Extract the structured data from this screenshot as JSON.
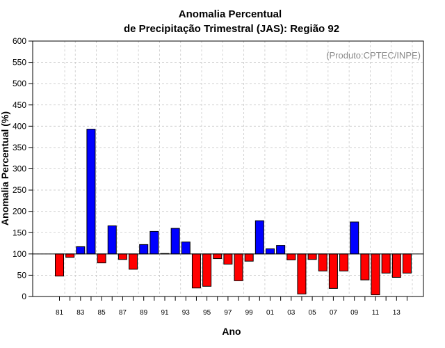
{
  "chart_data": {
    "type": "bar",
    "title_line1": "Anomalia Percentual",
    "title_line2": "de Precipitação Trimestral (JAS): Região 92",
    "xlabel": "Ano",
    "ylabel": "Anomalia Percentual (%)",
    "annotation": "(Produto:CPTEC/INPE)",
    "ylim": [
      0,
      600
    ],
    "yticks": [
      "0",
      "50",
      "100",
      "150",
      "200",
      "250",
      "300",
      "350",
      "400",
      "450",
      "500",
      "550",
      "600"
    ],
    "baseline": 100,
    "colors": {
      "above": "#0000ff",
      "below": "#ff0000"
    },
    "categories": [
      "81",
      "82",
      "83",
      "84",
      "85",
      "86",
      "87",
      "88",
      "89",
      "90",
      "91",
      "92",
      "93",
      "94",
      "95",
      "96",
      "97",
      "98",
      "99",
      "00",
      "01",
      "02",
      "03",
      "04",
      "05",
      "06",
      "07",
      "08",
      "09",
      "10",
      "11",
      "12",
      "13",
      "14"
    ],
    "xtick_labels": [
      "81",
      "83",
      "85",
      "87",
      "89",
      "91",
      "93",
      "95",
      "97",
      "99",
      "01",
      "03",
      "05",
      "07",
      "09",
      "11",
      "13"
    ],
    "values": [
      48,
      92,
      117,
      393,
      79,
      166,
      87,
      64,
      122,
      153,
      101,
      160,
      128,
      20,
      24,
      89,
      76,
      37,
      83,
      178,
      112,
      120,
      86,
      6,
      87,
      60,
      19,
      60,
      175,
      39,
      4,
      55,
      45,
      55
    ]
  }
}
